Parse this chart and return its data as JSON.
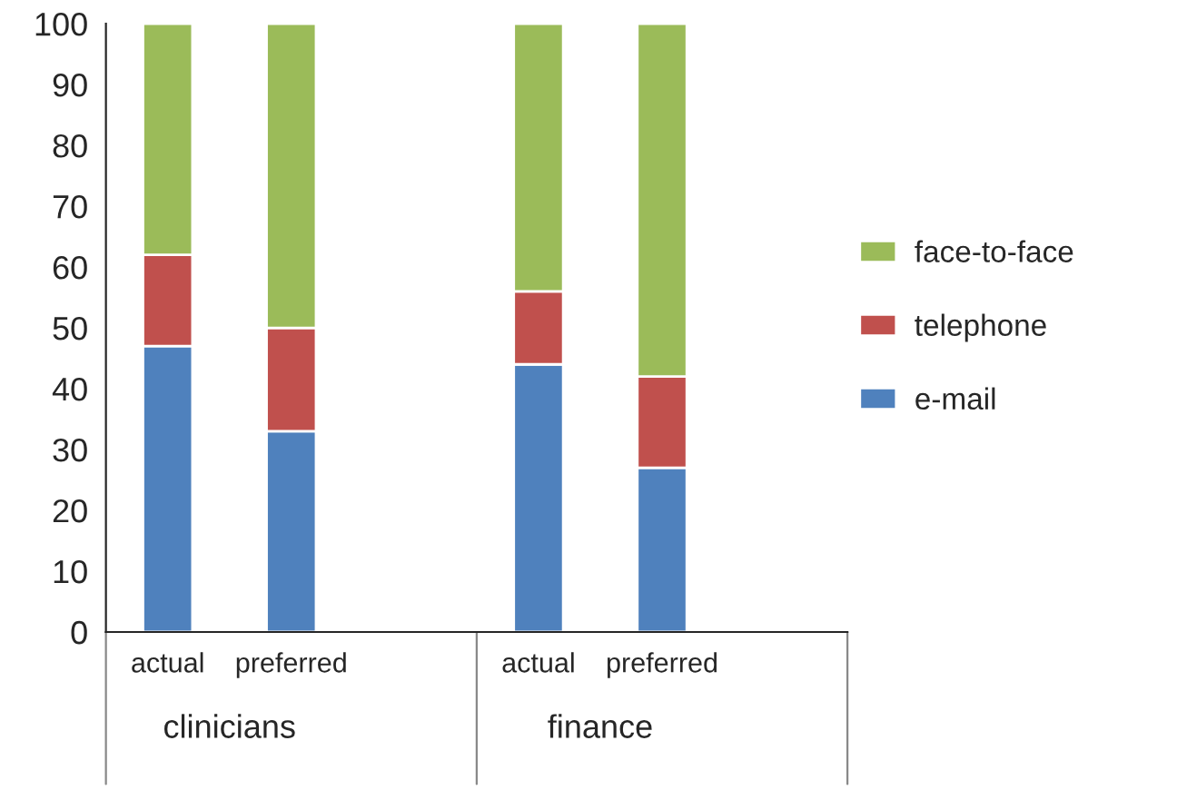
{
  "chart_data": {
    "type": "bar",
    "stacked": true,
    "categories": [
      "actual",
      "preferred",
      null,
      "actual",
      "preferred",
      null
    ],
    "series": [
      {
        "name": "e-mail",
        "color": "#4f81bd",
        "values": [
          47,
          33,
          null,
          44,
          27,
          null
        ]
      },
      {
        "name": "telephone",
        "color": "#c0504d",
        "values": [
          15,
          17,
          null,
          12,
          15,
          null
        ]
      },
      {
        "name": "face-to-face",
        "color": "#9bbb59",
        "values": [
          38,
          50,
          null,
          44,
          58,
          null
        ]
      }
    ],
    "annotations": [
      "clinicians",
      "finance"
    ],
    "ylim": [
      0,
      100
    ],
    "yticks": [
      0,
      10,
      20,
      30,
      40,
      50,
      60,
      70,
      80,
      90,
      100
    ],
    "grid": false,
    "legend": "right"
  }
}
